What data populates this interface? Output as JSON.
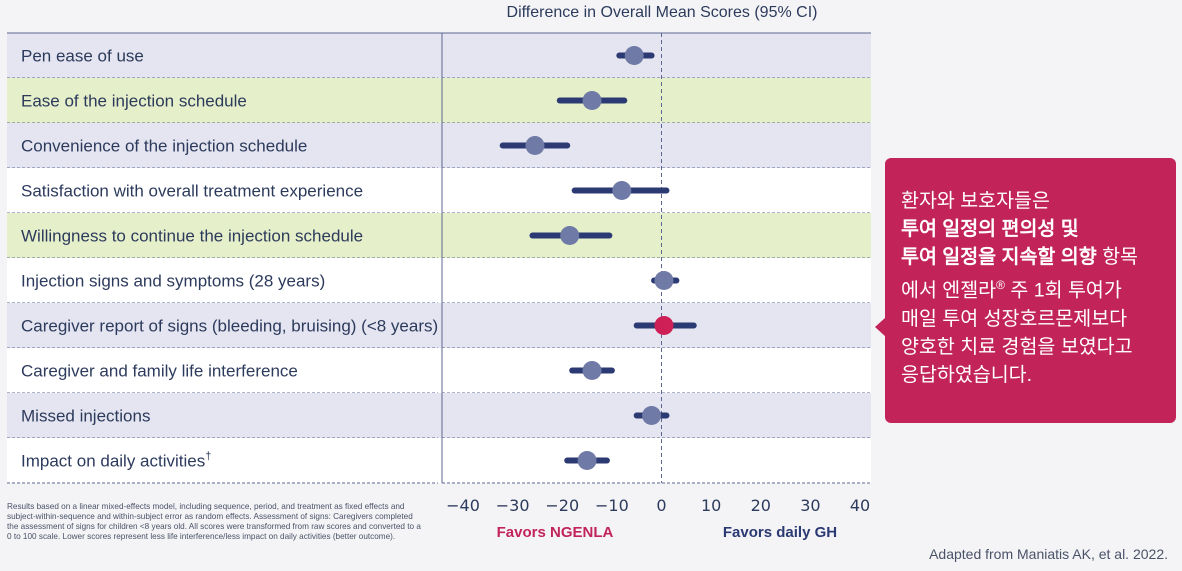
{
  "chart_data": {
    "type": "forest",
    "title": "Difference in Overall Mean Scores (95% CI)",
    "xlim": [
      -40,
      40
    ],
    "xticks": [
      -40,
      -30,
      -20,
      -10,
      0,
      10,
      20,
      30,
      40
    ],
    "reference_line": 0,
    "favors_left": "Favors NGENLA",
    "favors_right": "Favors daily GH",
    "rows": [
      {
        "label": "Pen ease of use",
        "estimate": -5.5,
        "ci": [
          -8.5,
          -2
        ],
        "highlight": false,
        "band": "#e4e5f0",
        "marker_color": "#6f7aa6"
      },
      {
        "label": "Ease of the injection schedule",
        "estimate": -14,
        "ci": [
          -20.5,
          -7.5
        ],
        "highlight": true,
        "band": "#e5efc9",
        "marker_color": "#6f7aa6"
      },
      {
        "label": "Convenience of the injection schedule",
        "estimate": -25.5,
        "ci": [
          -32,
          -19
        ],
        "highlight": false,
        "band": "#e4e5f0",
        "marker_color": "#6f7aa6"
      },
      {
        "label": "Satisfaction with overall treatment experience",
        "estimate": -8,
        "ci": [
          -17.5,
          1
        ],
        "highlight": false,
        "band": "#ffffff",
        "marker_color": "#6f7aa6"
      },
      {
        "label": "Willingness to continue the injection schedule",
        "estimate": -18.5,
        "ci": [
          -26,
          -10.5
        ],
        "highlight": true,
        "band": "#e5efc9",
        "marker_color": "#6f7aa6"
      },
      {
        "label": "Injection signs and symptoms (28 years)",
        "estimate": 0.5,
        "ci": [
          -1.5,
          3
        ],
        "highlight": false,
        "band": "#ffffff",
        "marker_color": "#6f7aa6"
      },
      {
        "label": "Caregiver report of signs (bleeding, bruising) (<8 years)",
        "estimate": 0.5,
        "ci": [
          -5,
          6.5
        ],
        "highlight": false,
        "band": "#e4e5f0",
        "marker_color": "#cf1f57"
      },
      {
        "label": "Caregiver and family life interference",
        "estimate": -14,
        "ci": [
          -18,
          -10
        ],
        "highlight": false,
        "band": "#ffffff",
        "marker_color": "#6f7aa6"
      },
      {
        "label": "Missed injections",
        "estimate": -2,
        "ci": [
          -5,
          1
        ],
        "highlight": false,
        "band": "#e4e5f0",
        "marker_color": "#6f7aa6"
      },
      {
        "label": "Impact on daily activities",
        "label_sup": "†",
        "estimate": -15,
        "ci": [
          -19,
          -11
        ],
        "highlight": false,
        "band": "#ffffff",
        "marker_color": "#6f7aa6"
      }
    ]
  },
  "colors": {
    "ci_bar": "#2b3a72",
    "accent": "#c2245a",
    "highlight_band": "#e5efc9",
    "grey_band": "#e4e5f0"
  },
  "callout": {
    "line1": "환자와 보호자들은",
    "line2_bold": "투여 일정의 편의성 및",
    "line3_bold": "투여 일정을 지속할 의향",
    "line3_rest": " 항목",
    "line4_a": "에서 엔젤라",
    "line4_sup": "®",
    "line4_b": " 주 1회 투여가",
    "line5": "매일 투여 성장호르몬제보다",
    "line6": "양호한 치료 경험을 보였다고",
    "line7": "응답하였습니다."
  },
  "footnote": "Results based on a linear mixed-effects model, including sequence, period, and treatment as fixed effects and subject-within-sequence and within-subject error as random effects. Assessment of signs: Caregivers completed the assessment of signs for children <8 years old. All scores were transformed from raw scores and converted to a 0 to 100 scale. Lower scores represent less life interference/less impact on daily activities (better outcome).",
  "source": "Adapted from Maniatis AK, et al. 2022."
}
